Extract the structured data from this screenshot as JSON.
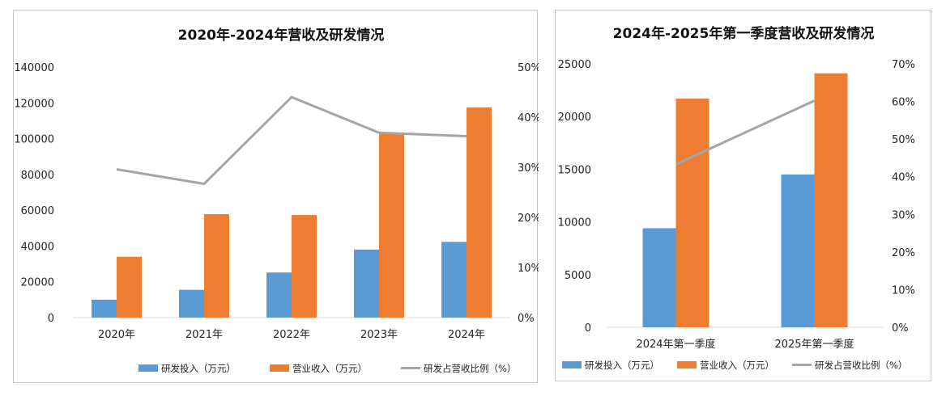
{
  "colors": {
    "rd": "#5b9bd5",
    "revenue": "#ed7d31",
    "ratio": "#a5a5a5"
  },
  "chart_data": [
    {
      "type": "bar",
      "title": "2020年-2024年营收及研发情况",
      "categories": [
        "2020年",
        "2021年",
        "2022年",
        "2023年",
        "2024年"
      ],
      "y_ticks": [
        "0",
        "20000",
        "40000",
        "60000",
        "80000",
        "100000",
        "120000",
        "140000"
      ],
      "y2_ticks": [
        "0%",
        "10%",
        "20%",
        "30%",
        "40%",
        "50%"
      ],
      "ylim": [
        0,
        140000
      ],
      "y2lim": [
        0,
        0.5
      ],
      "series": [
        {
          "name": "研发投入（万元）",
          "type": "bar",
          "axis": "left",
          "color": "#5b9bd5",
          "values": [
            10000,
            15500,
            25200,
            38000,
            42300
          ]
        },
        {
          "name": "营业收入（万元）",
          "type": "bar",
          "axis": "left",
          "color": "#ed7d31",
          "values": [
            34000,
            57800,
            57300,
            103000,
            117500
          ]
        },
        {
          "name": "研发占营收比例（%）",
          "type": "line",
          "axis": "right",
          "color": "#a5a5a5",
          "values": [
            0.296,
            0.267,
            0.44,
            0.369,
            0.362
          ]
        }
      ]
    },
    {
      "type": "bar",
      "title": "2024年-2025年第一季度营收及研发情况",
      "categories": [
        "2024年第一季度",
        "2025年第一季度"
      ],
      "y_ticks": [
        "0",
        "5000",
        "10000",
        "15000",
        "20000",
        "25000"
      ],
      "y2_ticks": [
        "0%",
        "10%",
        "20%",
        "30%",
        "40%",
        "50%",
        "60%",
        "70%"
      ],
      "ylim": [
        0,
        25000
      ],
      "y2lim": [
        0,
        0.7
      ],
      "series": [
        {
          "name": "研发投入（万元）",
          "type": "bar",
          "axis": "left",
          "color": "#5b9bd5",
          "values": [
            9400,
            14500
          ]
        },
        {
          "name": "营业收入（万元）",
          "type": "bar",
          "axis": "left",
          "color": "#ed7d31",
          "values": [
            21700,
            24100
          ]
        },
        {
          "name": "研发占营收比例（%）",
          "type": "line",
          "axis": "right",
          "color": "#a5a5a5",
          "values": [
            0.433,
            0.602
          ]
        }
      ]
    }
  ]
}
